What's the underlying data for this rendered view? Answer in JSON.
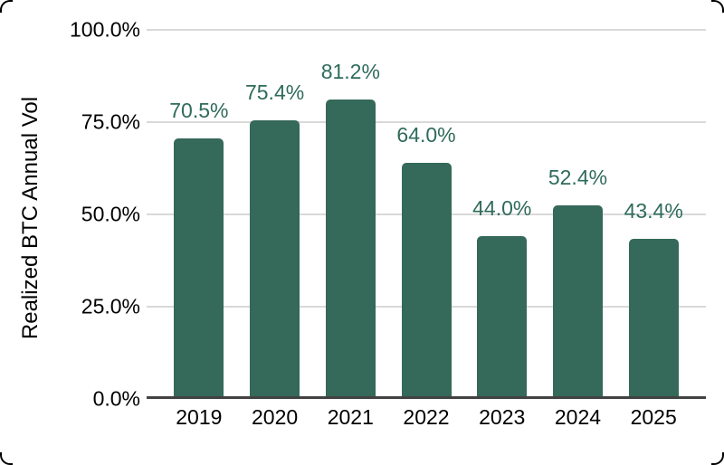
{
  "chart_data": {
    "type": "bar",
    "categories": [
      "2019",
      "2020",
      "2021",
      "2022",
      "2023",
      "2024",
      "2025"
    ],
    "values": [
      70.5,
      75.4,
      81.2,
      64.0,
      44.0,
      52.4,
      43.4
    ],
    "data_labels": [
      "70.5%",
      "75.4%",
      "81.2%",
      "64.0%",
      "44.0%",
      "52.4%",
      "43.4%"
    ],
    "ylabel": "Realized BTC Annual Vol",
    "xlabel": "",
    "ylim": [
      0,
      100
    ],
    "yticks": [
      {
        "value": 100,
        "label": "100.0%"
      },
      {
        "value": 75,
        "label": "75.0%"
      },
      {
        "value": 50,
        "label": "50.0%"
      },
      {
        "value": 25,
        "label": "25.0%"
      },
      {
        "value": 0,
        "label": "0.0%"
      }
    ],
    "grid": true,
    "legend": "none"
  },
  "colors": {
    "bar": "#35695a",
    "data_label": "#2f6b5b",
    "axis_text": "#000000",
    "gridline": "#d9d9d9",
    "axis_line": "#424242",
    "background": "#ffffff",
    "corner_mark": "#000000"
  }
}
